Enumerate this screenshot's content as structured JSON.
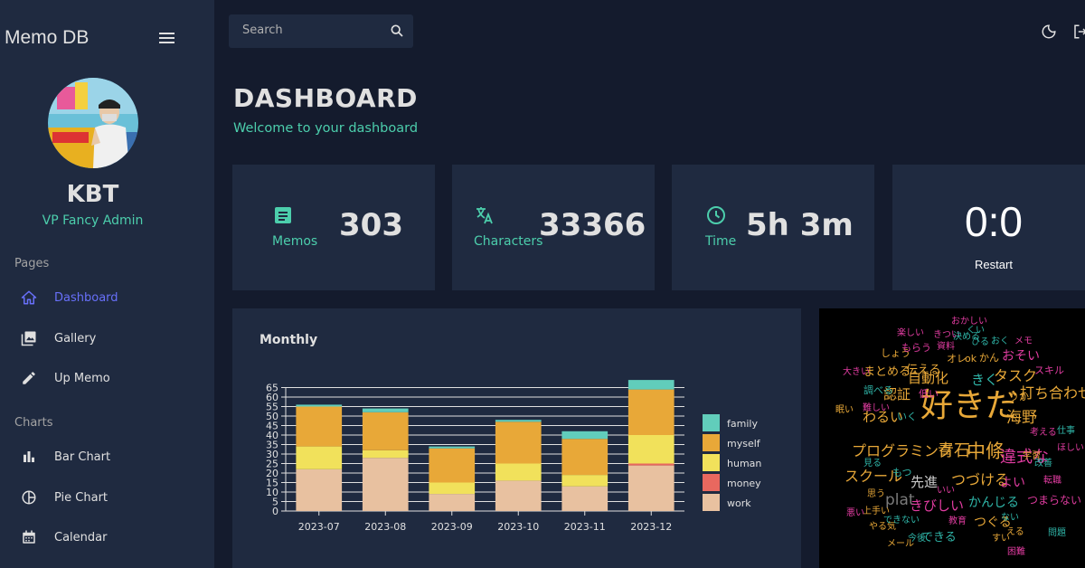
{
  "app": {
    "title": "Memo DB"
  },
  "sidebar": {
    "user": {
      "name": "KBT",
      "role": "VP Fancy Admin"
    },
    "sections": [
      {
        "label": "Pages",
        "items": [
          {
            "label": "Dashboard",
            "icon": "home-icon",
            "active": true
          },
          {
            "label": "Gallery",
            "icon": "photo-library-icon",
            "active": false
          },
          {
            "label": "Up Memo",
            "icon": "pencil-icon",
            "active": false
          }
        ]
      },
      {
        "label": "Charts",
        "items": [
          {
            "label": "Bar Chart",
            "icon": "bar-chart-icon",
            "active": false
          },
          {
            "label": "Pie Chart",
            "icon": "pie-chart-icon",
            "active": false
          },
          {
            "label": "Calendar",
            "icon": "calendar-icon",
            "active": false
          }
        ]
      }
    ]
  },
  "topbar": {
    "search_placeholder": "Search"
  },
  "header": {
    "title": "DASHBOARD",
    "subtitle": "Welcome to your dashboard"
  },
  "stats": [
    {
      "label": "Memos",
      "value": "303",
      "icon": "note-icon"
    },
    {
      "label": "Characters",
      "value": "33366",
      "icon": "translate-icon"
    },
    {
      "label": "Time",
      "value": "5h 3m",
      "icon": "clock-icon"
    }
  ],
  "timer": {
    "value": "0:0",
    "button_label": "Restart"
  },
  "colors": {
    "accent": "#4cceac",
    "active_nav": "#6870fa",
    "family": "#61cdbb",
    "myself": "#e8a838",
    "human": "#f1e15b",
    "money": "#e8685f",
    "work": "#e8c1a0"
  },
  "chart_data": {
    "type": "bar",
    "stacked": true,
    "title": "Monthly",
    "categories": [
      "2023-07",
      "2023-08",
      "2023-09",
      "2023-10",
      "2023-11",
      "2023-12"
    ],
    "series": [
      {
        "name": "work",
        "color": "#e8c1a0",
        "values": [
          22,
          28,
          9,
          16,
          13,
          24
        ]
      },
      {
        "name": "money",
        "color": "#e8685f",
        "values": [
          0,
          0,
          0,
          0,
          0,
          1
        ]
      },
      {
        "name": "human",
        "color": "#f1e15b",
        "values": [
          12,
          4,
          6,
          9,
          6,
          15
        ]
      },
      {
        "name": "myself",
        "color": "#e8a838",
        "values": [
          21,
          20,
          18,
          22,
          19,
          24
        ]
      },
      {
        "name": "family",
        "color": "#61cdbb",
        "values": [
          1,
          2,
          1,
          1,
          4,
          5
        ]
      }
    ],
    "legend_order": [
      "family",
      "myself",
      "human",
      "money",
      "work"
    ],
    "yticks": [
      0,
      5,
      10,
      15,
      20,
      25,
      30,
      35,
      40,
      45,
      50,
      55,
      60,
      65
    ],
    "ylim": [
      0,
      70
    ],
    "legend": "right"
  },
  "wordcloud": {
    "words": [
      {
        "text": "好きだ",
        "color": "#e8a838"
      },
      {
        "text": "プログラミング",
        "color": "#e8a838"
      },
      {
        "text": "青石",
        "color": "#e8a838"
      },
      {
        "text": "中條",
        "color": "#e8a838"
      },
      {
        "text": "違式な",
        "color": "#e03ca0"
      },
      {
        "text": "スクール",
        "color": "#e8a838"
      },
      {
        "text": "先進",
        "color": "#c8c8c8"
      },
      {
        "text": "つづける",
        "color": "#e8a838"
      },
      {
        "text": "自動化",
        "color": "#e8a838"
      },
      {
        "text": "きく",
        "color": "#2fb5a8"
      },
      {
        "text": "タスク",
        "color": "#e8a838"
      },
      {
        "text": "打ち合わせ",
        "color": "#e8a838"
      },
      {
        "text": "海野",
        "color": "#e8a838"
      },
      {
        "text": "認証",
        "color": "#e8a838"
      },
      {
        "text": "わるい",
        "color": "#e8a838"
      },
      {
        "text": "まとめる",
        "color": "#e8a838"
      },
      {
        "text": "伝える",
        "color": "#e8a838"
      },
      {
        "text": "plat",
        "color": "#7a7a7a"
      },
      {
        "text": "きびしい",
        "color": "#e03ca0"
      },
      {
        "text": "かんじる",
        "color": "#2fb5a8"
      },
      {
        "text": "よい",
        "color": "#e03ca0"
      },
      {
        "text": "つまらない",
        "color": "#e03ca0"
      },
      {
        "text": "つぐる",
        "color": "#e8a838"
      },
      {
        "text": "できる",
        "color": "#2fb5a8"
      },
      {
        "text": "おそい",
        "color": "#e03ca0"
      },
      {
        "text": "ok",
        "color": "#e8a838"
      },
      {
        "text": "オレ",
        "color": "#e8a838"
      },
      {
        "text": "かん",
        "color": "#e8a838"
      },
      {
        "text": "スキル",
        "color": "#e03ca0"
      },
      {
        "text": "りか",
        "color": "#e8a838"
      },
      {
        "text": "いく",
        "color": "#2fb5a8"
      },
      {
        "text": "もつ",
        "color": "#2fb5a8"
      },
      {
        "text": "しょう",
        "color": "#e8a838"
      },
      {
        "text": "もらう",
        "color": "#e03ca0"
      },
      {
        "text": "資料",
        "color": "#e03ca0"
      },
      {
        "text": "楽しい",
        "color": "#e03ca0"
      },
      {
        "text": "きつい",
        "color": "#e03ca0"
      },
      {
        "text": "おかしい",
        "color": "#e03ca0"
      },
      {
        "text": "決める",
        "color": "#2fb5a8"
      },
      {
        "text": "ひる",
        "color": "#2fb5a8"
      },
      {
        "text": "おく",
        "color": "#2fb5a8"
      },
      {
        "text": "メモ",
        "color": "#e03ca0"
      },
      {
        "text": "大きい",
        "color": "#e03ca0"
      },
      {
        "text": "調べる",
        "color": "#2fb5a8"
      },
      {
        "text": "低い",
        "color": "#e03ca0"
      },
      {
        "text": "思う",
        "color": "#e8a838"
      },
      {
        "text": "教育",
        "color": "#e03ca0"
      },
      {
        "text": "やる気",
        "color": "#e8a838"
      },
      {
        "text": "メール",
        "color": "#e8a838"
      },
      {
        "text": "今後",
        "color": "#2fb5a8"
      },
      {
        "text": "学習",
        "color": "#e8a838"
      },
      {
        "text": "転職",
        "color": "#e03ca0"
      },
      {
        "text": "仕事",
        "color": "#2fb5a8"
      },
      {
        "text": "ほしい",
        "color": "#e03ca0"
      },
      {
        "text": "改善",
        "color": "#2fb5a8"
      },
      {
        "text": "考える",
        "color": "#e03ca0"
      },
      {
        "text": "見る",
        "color": "#2fb5a8"
      },
      {
        "text": "難しい",
        "color": "#e03ca0"
      },
      {
        "text": "眠い",
        "color": "#e8a838"
      },
      {
        "text": "上手い",
        "color": "#e8a838"
      },
      {
        "text": "悪い",
        "color": "#e03ca0"
      },
      {
        "text": "できない",
        "color": "#2fb5a8"
      },
      {
        "text": "ない",
        "color": "#2fb5a8"
      },
      {
        "text": "える",
        "color": "#e8a838"
      },
      {
        "text": "すい",
        "color": "#e8a838"
      },
      {
        "text": "いい",
        "color": "#e03ca0"
      },
      {
        "text": "困難",
        "color": "#e03ca0"
      },
      {
        "text": "問題",
        "color": "#2fb5a8"
      },
      {
        "text": "くい",
        "color": "#2fb5a8"
      }
    ]
  }
}
